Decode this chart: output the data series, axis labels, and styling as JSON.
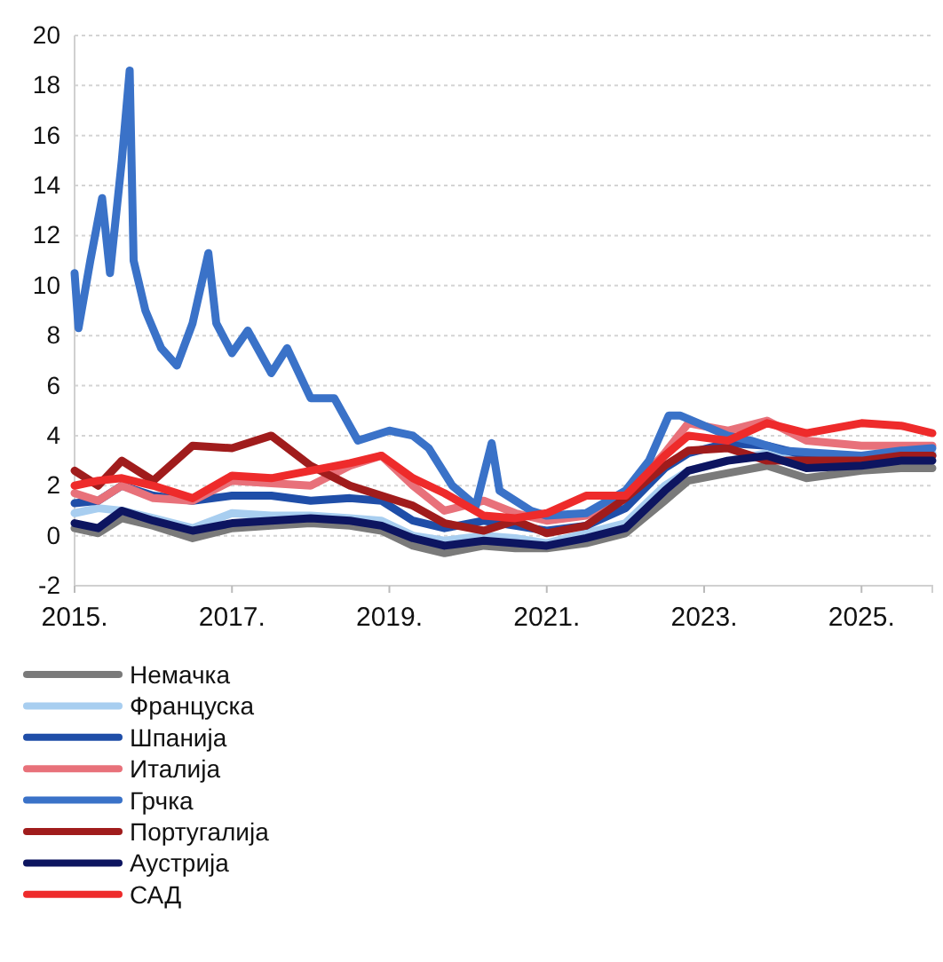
{
  "chart_data": {
    "type": "line",
    "x": [
      2015,
      2015.3,
      2015.6,
      2016,
      2016.5,
      2017,
      2017.5,
      2018,
      2018.5,
      2018.9,
      2019.3,
      2019.7,
      2020.2,
      2020.6,
      2021,
      2021.5,
      2022,
      2022.5,
      2022.8,
      2023.3,
      2023.8,
      2024.3,
      2025,
      2025.5,
      2025.9
    ],
    "series": [
      {
        "name": "Немачка",
        "color": "#7a7a7a",
        "values": [
          0.3,
          0.1,
          0.7,
          0.4,
          -0.1,
          0.3,
          0.4,
          0.5,
          0.4,
          0.2,
          -0.4,
          -0.7,
          -0.4,
          -0.5,
          -0.5,
          -0.3,
          0.1,
          1.4,
          2.2,
          2.5,
          2.8,
          2.3,
          2.6,
          2.7,
          2.7
        ]
      },
      {
        "name": "Француска",
        "color": "#a8cef0",
        "values": [
          0.9,
          1.1,
          1.0,
          0.7,
          0.3,
          0.9,
          0.8,
          0.8,
          0.7,
          0.6,
          0.0,
          -0.2,
          0.0,
          -0.1,
          -0.3,
          0.1,
          0.5,
          2.0,
          2.6,
          3.0,
          3.3,
          2.9,
          3.0,
          3.1,
          3.3
        ]
      },
      {
        "name": "Шпанија",
        "color": "#1f4ea8",
        "values": [
          1.3,
          1.4,
          2.0,
          1.6,
          1.4,
          1.6,
          1.6,
          1.4,
          1.5,
          1.4,
          0.6,
          0.3,
          0.6,
          0.4,
          0.2,
          0.4,
          1.1,
          2.7,
          3.3,
          3.7,
          3.6,
          3.2,
          3.1,
          3.2,
          3.2
        ]
      },
      {
        "name": "Италија",
        "color": "#e8717a",
        "values": [
          1.7,
          1.4,
          2.0,
          1.5,
          1.4,
          2.2,
          2.1,
          2.0,
          2.8,
          3.2,
          2.0,
          1.0,
          1.4,
          0.9,
          0.6,
          0.8,
          1.6,
          3.3,
          4.5,
          4.2,
          4.6,
          3.8,
          3.6,
          3.6,
          3.6
        ]
      },
      {
        "name": "Грчка",
        "color": "#3a72c8",
        "x": [
          2015,
          2015.05,
          2015.2,
          2015.35,
          2015.45,
          2015.6,
          2015.7,
          2015.75,
          2015.9,
          2016.1,
          2016.3,
          2016.5,
          2016.7,
          2016.8,
          2017,
          2017.2,
          2017.5,
          2017.7,
          2018,
          2018.3,
          2018.6,
          2019,
          2019.3,
          2019.5,
          2019.8,
          2020.1,
          2020.3,
          2020.4,
          2020.8,
          2021,
          2021.5,
          2022,
          2022.3,
          2022.55,
          2022.7,
          2023,
          2023.3,
          2023.6,
          2024,
          2024.5,
          2025,
          2025.5,
          2025.9
        ],
        "values": [
          10.5,
          8.3,
          11,
          13.5,
          10.5,
          15,
          18.6,
          11,
          9,
          7.5,
          6.8,
          8.5,
          11.3,
          8.5,
          7.3,
          8.2,
          6.5,
          7.5,
          5.5,
          5.5,
          3.8,
          4.2,
          4.0,
          3.5,
          2.0,
          1.2,
          3.7,
          1.8,
          1.0,
          0.8,
          0.9,
          1.8,
          3.0,
          4.8,
          4.8,
          4.4,
          4.0,
          3.8,
          3.4,
          3.3,
          3.2,
          3.4,
          3.5
        ]
      },
      {
        "name": "Португалија",
        "color": "#a01c1c",
        "values": [
          2.6,
          2.0,
          3.0,
          2.2,
          3.6,
          3.5,
          4.0,
          2.8,
          2.0,
          1.6,
          1.2,
          0.5,
          0.2,
          0.6,
          0.1,
          0.4,
          1.5,
          2.8,
          3.4,
          3.5,
          3.0,
          3.0,
          3.0,
          3.2,
          3.2
        ]
      },
      {
        "name": "Аустрија",
        "color": "#0d1560",
        "values": [
          0.5,
          0.3,
          1.0,
          0.6,
          0.2,
          0.5,
          0.6,
          0.7,
          0.6,
          0.4,
          -0.1,
          -0.4,
          -0.2,
          -0.3,
          -0.4,
          -0.1,
          0.3,
          1.8,
          2.6,
          3.0,
          3.2,
          2.7,
          2.8,
          3.0,
          3.0
        ]
      },
      {
        "name": "САД",
        "color": "#ee2b2b",
        "values": [
          2.0,
          2.2,
          2.3,
          2.0,
          1.5,
          2.4,
          2.3,
          2.6,
          2.9,
          3.2,
          2.3,
          1.7,
          0.8,
          0.7,
          0.9,
          1.6,
          1.6,
          3.2,
          4.0,
          3.8,
          4.5,
          4.1,
          4.5,
          4.4,
          4.1
        ]
      }
    ],
    "xlim": [
      2015,
      2025.9
    ],
    "xticks": [
      {
        "value": 2015,
        "label": "2015."
      },
      {
        "value": 2017,
        "label": "2017."
      },
      {
        "value": 2019,
        "label": "2019."
      },
      {
        "value": 2021,
        "label": "2021."
      },
      {
        "value": 2023,
        "label": "2023."
      },
      {
        "value": 2025,
        "label": "2025."
      }
    ],
    "ylim": [
      -2,
      20
    ],
    "yticks": [
      -2,
      0,
      2,
      4,
      6,
      8,
      10,
      12,
      14,
      16,
      18,
      20
    ],
    "grid": "y",
    "legend": "bottom left",
    "line_style": "solid",
    "marker": "none"
  }
}
